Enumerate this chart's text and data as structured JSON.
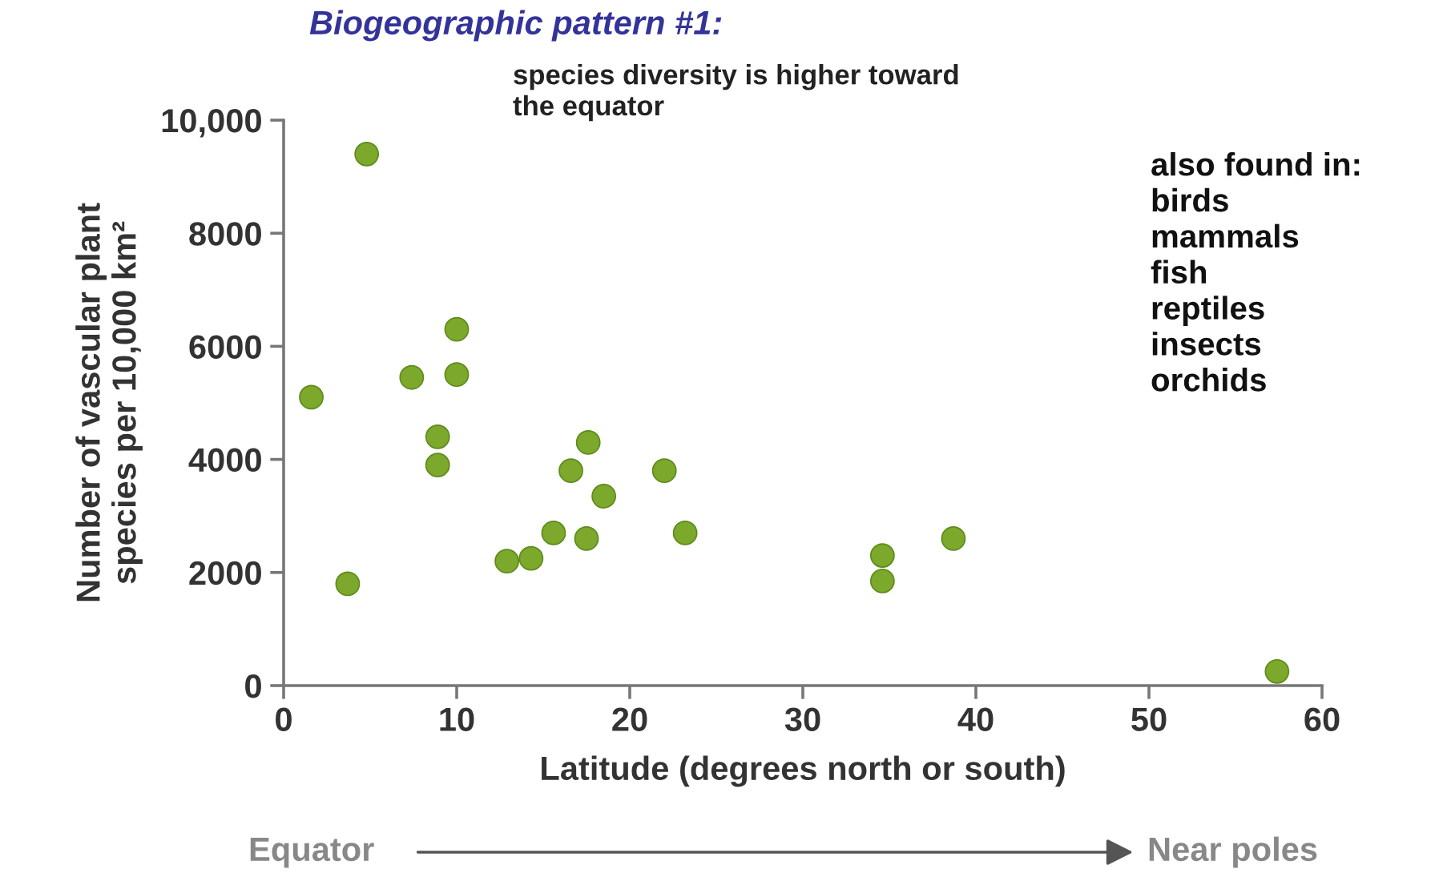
{
  "chart_data": {
    "type": "scatter",
    "title": "Biogeographic pattern #1:",
    "subtitle": "species diversity is higher toward\nthe equator",
    "xlabel": "Latitude (degrees north or south)",
    "ylabel": "Number of vascular plant\nspecies per 10,000 km²",
    "series": [
      {
        "color": "#7ca82b",
        "x": [
          4.8,
          1.6,
          3.7,
          7.4,
          10.0,
          10.0,
          8.9,
          8.9,
          12.9,
          14.3,
          15.6,
          16.6,
          17.6,
          17.5,
          18.5,
          22.0,
          23.2,
          34.6,
          34.6,
          38.7,
          57.4
        ],
        "values": [
          9400,
          5100,
          1800,
          5450,
          6300,
          5500,
          4400,
          3900,
          2200,
          2250,
          2700,
          3800,
          4300,
          2600,
          3350,
          3800,
          2700,
          2300,
          1850,
          2600,
          250
        ]
      }
    ],
    "marker": "circle",
    "xlim": [
      0,
      60
    ],
    "ylim": [
      0,
      10000
    ],
    "xticks": [
      0,
      10,
      20,
      30,
      40,
      50,
      60
    ],
    "yticks": [
      0,
      2000,
      4000,
      6000,
      8000,
      {
        "value": 10000,
        "label": "10,000"
      }
    ],
    "grid": false,
    "legend": false,
    "annotations": [
      "also found in:\nbirds\nmammals\nfish\nreptiles\ninsects\norchids",
      "Equator",
      "Near poles"
    ]
  }
}
